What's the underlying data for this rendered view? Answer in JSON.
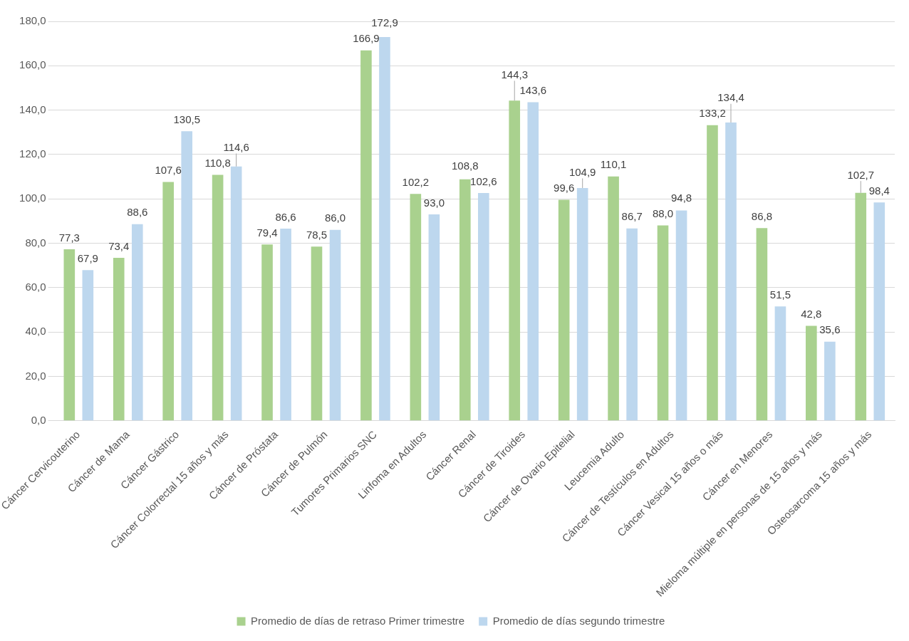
{
  "chart_data": {
    "type": "bar",
    "categories": [
      "Cáncer Cervicouterino",
      "Cáncer de Mama",
      "Cáncer Gástrico",
      "Cáncer Colorrectal 15 años y más",
      "Cáncer de Próstata",
      "Cáncer de Pulmón",
      "Tumores Primarios SNC",
      "Linfoma en Adultos",
      "Cáncer Renal",
      "Cáncer de Tiroides",
      "Cáncer de Ovario Epitelial",
      "Leucemia Adulto",
      "Cáncer de Testículos en Adultos",
      "Cáncer Vesical 15 años o más",
      "Cáncer en Menores",
      "Mieloma múltiple en personas de 15 años y más",
      "Osteosarcoma 15 años y más"
    ],
    "series": [
      {
        "name": "Promedio de días de retraso Primer trimestre",
        "color": "#a9d18e",
        "values": [
          77.3,
          73.4,
          107.6,
          110.8,
          79.4,
          78.5,
          166.9,
          102.2,
          108.8,
          144.3,
          99.6,
          110.1,
          88.0,
          133.2,
          86.8,
          42.8,
          102.7
        ],
        "value_labels": [
          "77,3",
          "73,4",
          "107,6",
          "110,8",
          "79,4",
          "78,5",
          "166,9",
          "102,2",
          "108,8",
          "144,3",
          "99,6",
          "110,1",
          "88,0",
          "133,2",
          "86,8",
          "42,8",
          "102,7"
        ]
      },
      {
        "name": "Promedio de días segundo trimestre",
        "color": "#bdd7ee",
        "values": [
          67.9,
          88.6,
          130.5,
          114.6,
          86.6,
          86.0,
          172.9,
          93.0,
          102.6,
          143.6,
          104.9,
          86.7,
          94.8,
          134.4,
          51.5,
          35.6,
          98.4
        ],
        "value_labels": [
          "67,9",
          "88,6",
          "130,5",
          "114,6",
          "86,6",
          "86,0",
          "172,9",
          "93,0",
          "102,6",
          "143,6",
          "104,9",
          "86,7",
          "94,8",
          "134,4",
          "51,5",
          "35,6",
          "98,4"
        ]
      }
    ],
    "ylim": [
      0,
      180
    ],
    "yticks": [
      {
        "value": 0,
        "label": "0,0"
      },
      {
        "value": 20,
        "label": "20,0"
      },
      {
        "value": 40,
        "label": "40,0"
      },
      {
        "value": 60,
        "label": "60,0"
      },
      {
        "value": 80,
        "label": "80,0"
      },
      {
        "value": 100,
        "label": "100,0"
      },
      {
        "value": 120,
        "label": "120,0"
      },
      {
        "value": 140,
        "label": "140,0"
      },
      {
        "value": 160,
        "label": "160,0"
      },
      {
        "value": 180,
        "label": "180,0"
      }
    ],
    "grid": "y",
    "legend": "bottom"
  }
}
